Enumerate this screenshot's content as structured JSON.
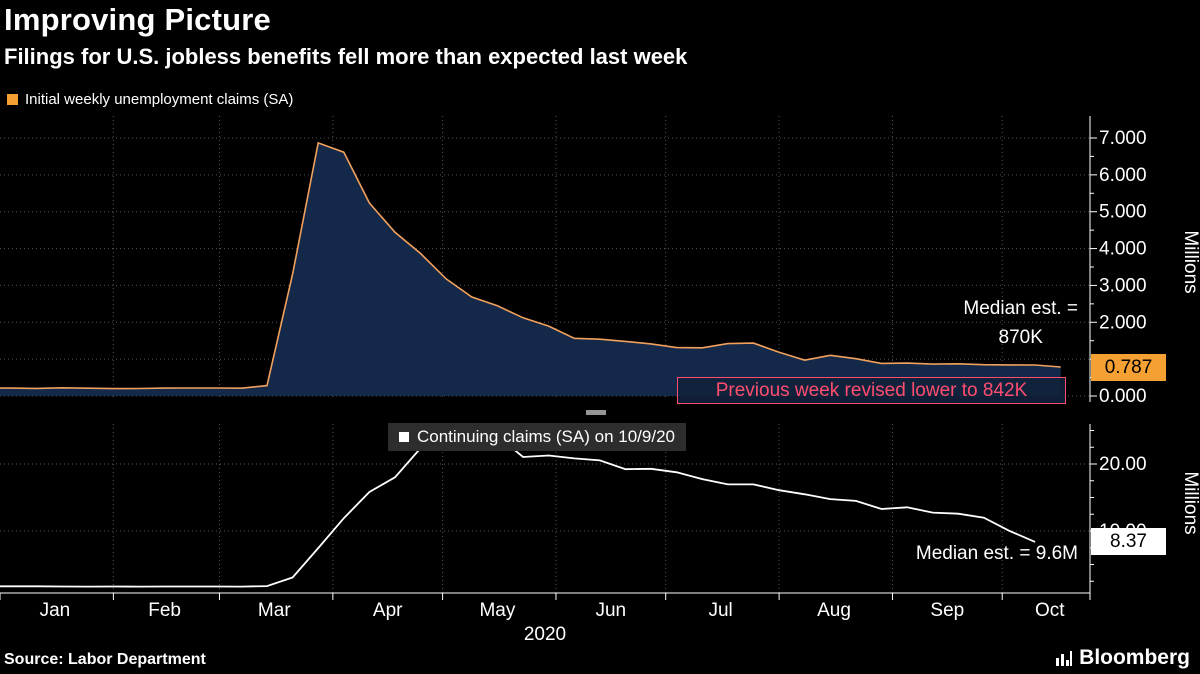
{
  "header": {
    "title": "Improving Picture",
    "subtitle": "Filings for U.S. jobless benefits fell more than expected last week",
    "legend": {
      "swatch_color": "#f5a033",
      "label": "Initial weekly unemployment claims (SA)"
    }
  },
  "colors": {
    "accent_orange": "#f5a033",
    "line_orange": "#f1a15c",
    "area_navy": "#14294a",
    "pink": "#ff4d6e",
    "grid": "#555555",
    "white": "#ffffff"
  },
  "chart_data": [
    {
      "type": "area",
      "name": "Initial weekly unemployment claims (SA)",
      "y_unit": "Millions",
      "ylim": [
        0,
        7.4
      ],
      "y_ticks": [
        {
          "value": 7,
          "label": "7.000"
        },
        {
          "value": 6,
          "label": "6.000"
        },
        {
          "value": 5,
          "label": "5.000"
        },
        {
          "value": 4,
          "label": "4.000"
        },
        {
          "value": 3,
          "label": "3.000"
        },
        {
          "value": 2,
          "label": "2.000"
        },
        {
          "value": 0,
          "label": "0.000"
        }
      ],
      "x_days": [
        3,
        10,
        17,
        24,
        31,
        38,
        45,
        52,
        59,
        66,
        73,
        80,
        87,
        94,
        101,
        108,
        115,
        122,
        129,
        136,
        143,
        150,
        157,
        164,
        171,
        178,
        185,
        192,
        199,
        206,
        213,
        220,
        227,
        234,
        241,
        248,
        255,
        262,
        269,
        276,
        283,
        290
      ],
      "values": [
        0.214,
        0.207,
        0.223,
        0.212,
        0.201,
        0.204,
        0.215,
        0.217,
        0.217,
        0.211,
        0.282,
        3.307,
        6.867,
        6.615,
        5.237,
        4.442,
        3.867,
        3.176,
        2.687,
        2.446,
        2.123,
        1.897,
        1.566,
        1.54,
        1.482,
        1.413,
        1.314,
        1.308,
        1.422,
        1.435,
        1.186,
        0.971,
        1.104,
        1.011,
        0.884,
        0.893,
        0.866,
        0.873,
        0.849,
        0.845,
        0.842,
        0.787
      ],
      "line_color": "#f1a15c",
      "fill_color": "#14294a",
      "last_value_badge": {
        "label": "0.787",
        "value": 0.787,
        "bg": "#f5a033"
      },
      "annotations": {
        "median_label": "Median est. =",
        "median_value": "870K",
        "revision_note": "Previous week revised lower to 842K"
      }
    },
    {
      "type": "line",
      "name": "Continuing claims (SA) on 10/9/20",
      "legend_label": "Continuing claims (SA) on 10/9/20",
      "y_unit": "Millions",
      "ylim": [
        0,
        26
      ],
      "y_ticks": [
        {
          "value": 20,
          "label": "20.00"
        },
        {
          "value": 10,
          "label": "10.00"
        }
      ],
      "x_days": [
        3,
        10,
        17,
        24,
        31,
        38,
        45,
        52,
        59,
        66,
        73,
        80,
        87,
        94,
        101,
        108,
        115,
        122,
        129,
        136,
        143,
        150,
        157,
        164,
        171,
        178,
        185,
        192,
        199,
        206,
        213,
        220,
        227,
        234,
        241,
        248,
        255,
        262,
        269,
        276,
        283
      ],
      "values": [
        1.75,
        1.74,
        1.72,
        1.7,
        1.72,
        1.7,
        1.72,
        1.72,
        1.72,
        1.7,
        1.78,
        3.06,
        7.45,
        11.91,
        15.82,
        18.01,
        22.38,
        22.55,
        24.91,
        24.18,
        21.05,
        21.27,
        20.84,
        20.54,
        19.23,
        19.29,
        18.76,
        17.75,
        16.95,
        16.96,
        16.09,
        15.48,
        14.76,
        14.49,
        13.29,
        13.54,
        12.75,
        12.58,
        11.98,
        10.02,
        8.37
      ],
      "line_color": "#ffffff",
      "last_value_badge": {
        "label": "8.37",
        "value": 8.37,
        "bg": "#ffffff"
      },
      "annotations": {
        "median_label": "Median est. = 9.6M"
      }
    }
  ],
  "x_axis": {
    "months": [
      "Jan",
      "Feb",
      "Mar",
      "Apr",
      "May",
      "Jun",
      "Jul",
      "Aug",
      "Sep",
      "Oct"
    ],
    "month_label_days": [
      15,
      45,
      75,
      106,
      136,
      167,
      197,
      228,
      259,
      287
    ],
    "month_start_days": [
      31,
      60,
      91,
      121,
      152,
      182,
      213,
      244,
      274
    ],
    "year": "2020"
  },
  "footer": {
    "source": "Source: Labor Department",
    "brand": "Bloomberg"
  }
}
